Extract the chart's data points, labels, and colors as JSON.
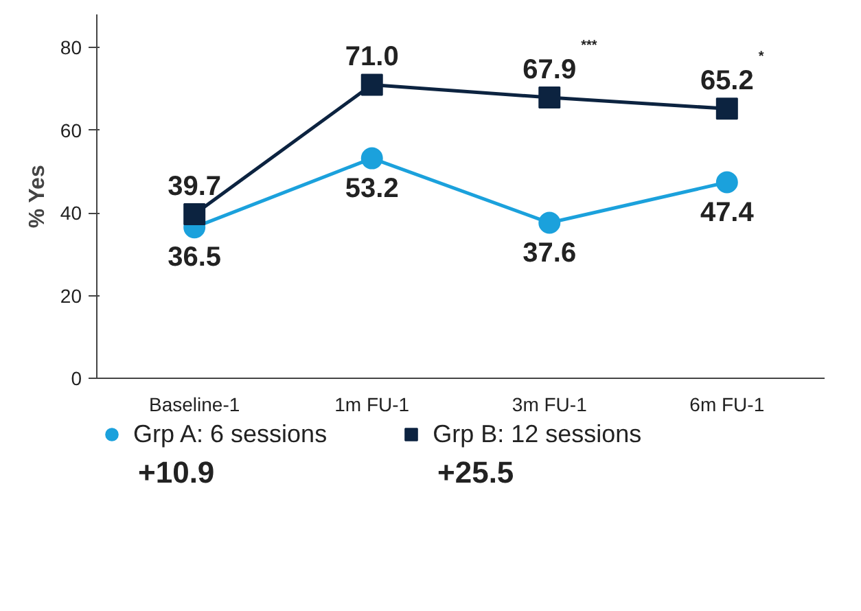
{
  "chart_data": {
    "type": "line",
    "ylabel": "% Yes",
    "categories": [
      "Baseline-1",
      "1m FU-1",
      "3m FU-1",
      "6m FU-1"
    ],
    "ylim": [
      0,
      88
    ],
    "yticks": [
      0,
      20,
      40,
      60,
      80
    ],
    "grid": false,
    "legend": "bottom",
    "data_labels": true,
    "series": [
      {
        "name": "Grp A: 6 sessions",
        "color": "#1ba1dc",
        "marker": "circle",
        "values": [
          36.5,
          53.2,
          37.6,
          47.4
        ],
        "value_labels": [
          "36.5",
          "53.2",
          "37.6",
          "47.4"
        ]
      },
      {
        "name": "Grp B: 12 sessions",
        "color": "#0c2340",
        "marker": "square",
        "values": [
          39.7,
          71.0,
          67.9,
          65.2
        ],
        "value_labels": [
          "39.7",
          "71.0",
          "67.9$^{***}$",
          "65.2$^{*}$"
        ]
      }
    ],
    "annotations": [
      "+10.9",
      "+25.5"
    ]
  }
}
